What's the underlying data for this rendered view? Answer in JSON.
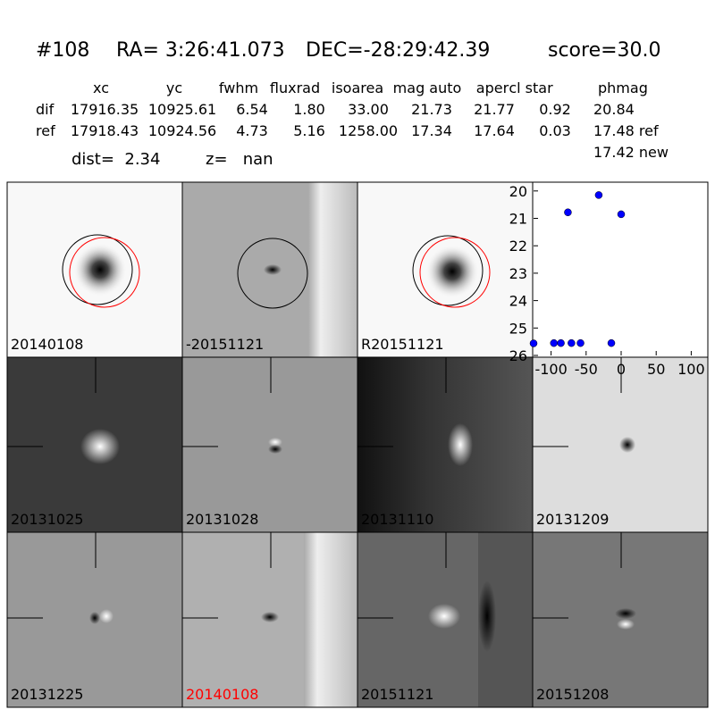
{
  "header": {
    "id": "#108",
    "ra": "RA= 3:26:41.073",
    "dec": "DEC=-28:29:42.39",
    "score": "score=30.0"
  },
  "table": {
    "columns": [
      "xc",
      "yc",
      "fwhm",
      "fluxrad",
      "isoarea",
      "mag auto",
      "aper",
      "cl star",
      "phmag"
    ],
    "rows": [
      [
        "dif",
        "17916.35",
        "10925.61",
        "6.54",
        "1.80",
        "33.00",
        "21.73",
        "21.77",
        "0.92",
        "20.84"
      ],
      [
        "ref",
        "17918.43",
        "10924.56",
        "4.73",
        "5.16",
        "1258.00",
        "17.34",
        "17.64",
        "0.03",
        "17.48 ref"
      ]
    ],
    "extra": "17.42 new"
  },
  "dist": "dist=  2.34",
  "z": "z=   nan",
  "panels": [
    "20140108",
    "-20151121",
    "R20151121",
    "20131025",
    "20131028",
    "20131110",
    "20131209",
    "20131225",
    "20140108",
    "20151121",
    "20151208"
  ],
  "chart_data": {
    "type": "scatter",
    "x": [
      -125,
      -96,
      -86,
      -71,
      -58,
      -76,
      -32,
      -14,
      0
    ],
    "values": [
      25.56,
      25.55,
      25.55,
      25.55,
      25.55,
      20.78,
      20.15,
      25.55,
      20.85
    ],
    "color": "#0000ff",
    "xlim": [
      -125,
      125
    ],
    "ylim": [
      26,
      19.68
    ],
    "xticks": [
      -100,
      -50,
      0,
      50,
      100
    ],
    "yticks": [
      20,
      21,
      22,
      23,
      24,
      25,
      26
    ]
  }
}
